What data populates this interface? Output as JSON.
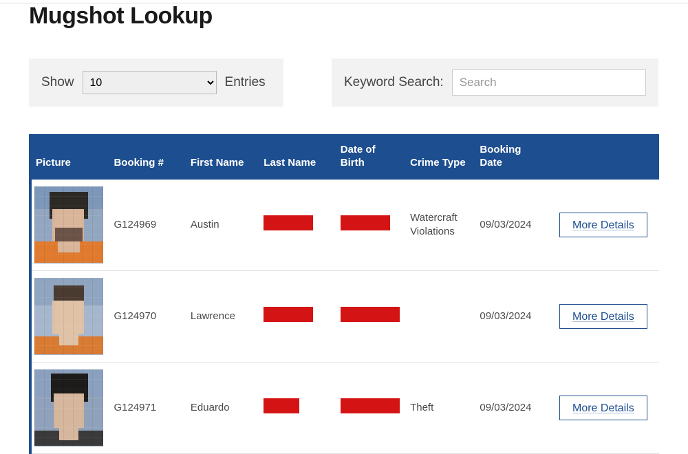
{
  "title": "Mugshot Lookup",
  "controls": {
    "show_label": "Show",
    "entries_label": "Entries",
    "show_value": "10",
    "search_label": "Keyword Search:",
    "search_placeholder": "Search"
  },
  "colors": {
    "header_bg": "#1d4e8f",
    "header_text": "#ffffff",
    "control_bg": "#f2f2f2",
    "redact": "#d41414",
    "link": "#1d4e8f"
  },
  "columns": {
    "picture": "Picture",
    "booking_no": "Booking #",
    "first_name": "First Name",
    "last_name": "Last Name",
    "dob": "Date of Birth",
    "crime_type": "Crime Type",
    "booking_date": "Booking Date"
  },
  "rows": [
    {
      "booking_no": "G124969",
      "first_name": "Austin",
      "last_name_redacted": true,
      "dob_redacted": true,
      "crime_type": "Watercraft Violations",
      "booking_date": "09/03/2024",
      "action_label": "More Details"
    },
    {
      "booking_no": "G124970",
      "first_name": "Lawrence",
      "last_name_redacted": true,
      "dob_redacted": true,
      "crime_type": "",
      "booking_date": "09/03/2024",
      "action_label": "More Details"
    },
    {
      "booking_no": "G124971",
      "first_name": "Eduardo",
      "last_name_redacted": true,
      "dob_redacted": true,
      "crime_type": "Theft",
      "booking_date": "09/03/2024",
      "action_label": "More Details"
    }
  ]
}
